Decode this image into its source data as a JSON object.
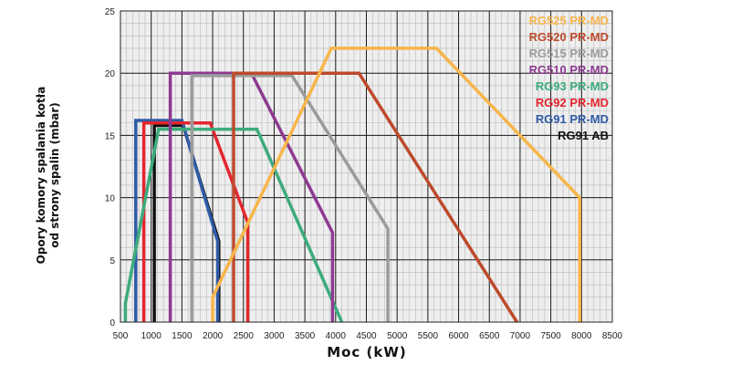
{
  "chart_data": {
    "type": "line",
    "xlabel": "Moc (kW)",
    "ylabel_lines": [
      "Opory komory spalania kotła",
      "od strony spalin (mbar)"
    ],
    "xlim": [
      500,
      8500
    ],
    "ylim": [
      0,
      25
    ],
    "x_ticks": [
      "500",
      "1000",
      "1500",
      "2000",
      "2500",
      "3000",
      "3500",
      "4000",
      "4500",
      "5000",
      "5500",
      "6000",
      "6500",
      "7000",
      "7500",
      "8000",
      "8500"
    ],
    "y_ticks": [
      "0",
      "5",
      "10",
      "15",
      "20",
      "25"
    ],
    "grid": true,
    "legend_position": "top-right",
    "series": [
      {
        "name": "RG525 PR-MD",
        "color": "#f7b54a",
        "points": [
          [
            2000,
            0
          ],
          [
            2000,
            2
          ],
          [
            3930,
            22
          ],
          [
            5640,
            22
          ],
          [
            7970,
            10
          ],
          [
            7970,
            0
          ]
        ]
      },
      {
        "name": "RG520 PR-MD",
        "color": "#bd4a2c",
        "points": [
          [
            2340,
            0
          ],
          [
            2340,
            20
          ],
          [
            4380,
            20
          ],
          [
            6950,
            0
          ]
        ]
      },
      {
        "name": "RG515 PR-MD",
        "color": "#9b9b9b",
        "points": [
          [
            1660,
            0
          ],
          [
            1660,
            19.8
          ],
          [
            3290,
            19.8
          ],
          [
            4850,
            7.5
          ],
          [
            4850,
            0
          ]
        ]
      },
      {
        "name": "RG510 PR-MD",
        "color": "#8e3a92",
        "points": [
          [
            1310,
            0
          ],
          [
            1310,
            20
          ],
          [
            2630,
            20
          ],
          [
            3950,
            7.2
          ],
          [
            3950,
            0
          ]
        ]
      },
      {
        "name": "RG93 PR-MD",
        "color": "#3dab7c",
        "points": [
          [
            580,
            0
          ],
          [
            580,
            1.5
          ],
          [
            1120,
            15.5
          ],
          [
            2720,
            15.5
          ],
          [
            4100,
            0
          ]
        ]
      },
      {
        "name": "RG92 PR-MD",
        "color": "#e3262e",
        "points": [
          [
            880,
            0
          ],
          [
            880,
            16
          ],
          [
            1960,
            16
          ],
          [
            2570,
            8
          ],
          [
            2570,
            0
          ]
        ]
      },
      {
        "name": "RG91 PR-MD",
        "color": "#2f5ba7",
        "points": [
          [
            750,
            0
          ],
          [
            750,
            16.2
          ],
          [
            1500,
            16.2
          ],
          [
            2080,
            6.5
          ],
          [
            2080,
            0
          ]
        ]
      },
      {
        "name": "RG91 AB",
        "color": "#111111",
        "points": [
          [
            1050,
            0
          ],
          [
            1050,
            15.8
          ],
          [
            1520,
            15.8
          ],
          [
            2100,
            6.5
          ],
          [
            2100,
            0
          ]
        ]
      }
    ]
  }
}
